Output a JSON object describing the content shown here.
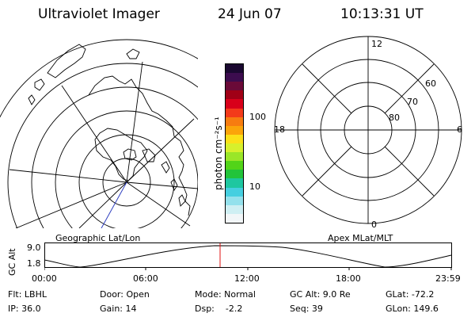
{
  "header": {
    "title": "Ultraviolet Imager",
    "date": "24 Jun 07",
    "time": "10:13:31 UT"
  },
  "left_map": {
    "caption": "Geographic Lat/Lon"
  },
  "colorbar": {
    "unit_label": "photon cm⁻²s⁻¹",
    "tick_100": "100",
    "tick_10": "10",
    "colors_top_to_bottom": [
      "#1a0830",
      "#3c0c4e",
      "#6a0a38",
      "#a00016",
      "#d8001a",
      "#f33a1a",
      "#f77c10",
      "#fba40a",
      "#fbe018",
      "#d7f02c",
      "#9ae628",
      "#52d418",
      "#22c43a",
      "#1ec7a0",
      "#45cfe0",
      "#94e1ec",
      "#cfeff3",
      "#f2f6f8"
    ]
  },
  "right_polar": {
    "caption": "Apex MLat/MLT",
    "mlt_12": "12",
    "mlt_18": "18",
    "mlt_6": "6",
    "mlt_0": "0",
    "lat_60": "60",
    "lat_70": "70",
    "lat_80": "80"
  },
  "alt_panel": {
    "ylabel": "GC Alt",
    "ytick_top": "9.0",
    "ytick_bottom": "1.8",
    "xticks": [
      "00:00",
      "06:00",
      "12:00",
      "18:00",
      "23:59"
    ],
    "marker_color": "#e01010"
  },
  "status": {
    "filter": "Flt: LBHL",
    "ip": "IP: 36.0",
    "door": "Door: Open",
    "gain": "Gain: 14",
    "mode": "Mode: Normal",
    "dsp": "Dsp:    -2.2",
    "gc_alt": "GC Alt: 9.0 Re",
    "seq": "Seq: 39",
    "glat": "GLat: -72.2",
    "glon": "GLon: 149.6"
  }
}
